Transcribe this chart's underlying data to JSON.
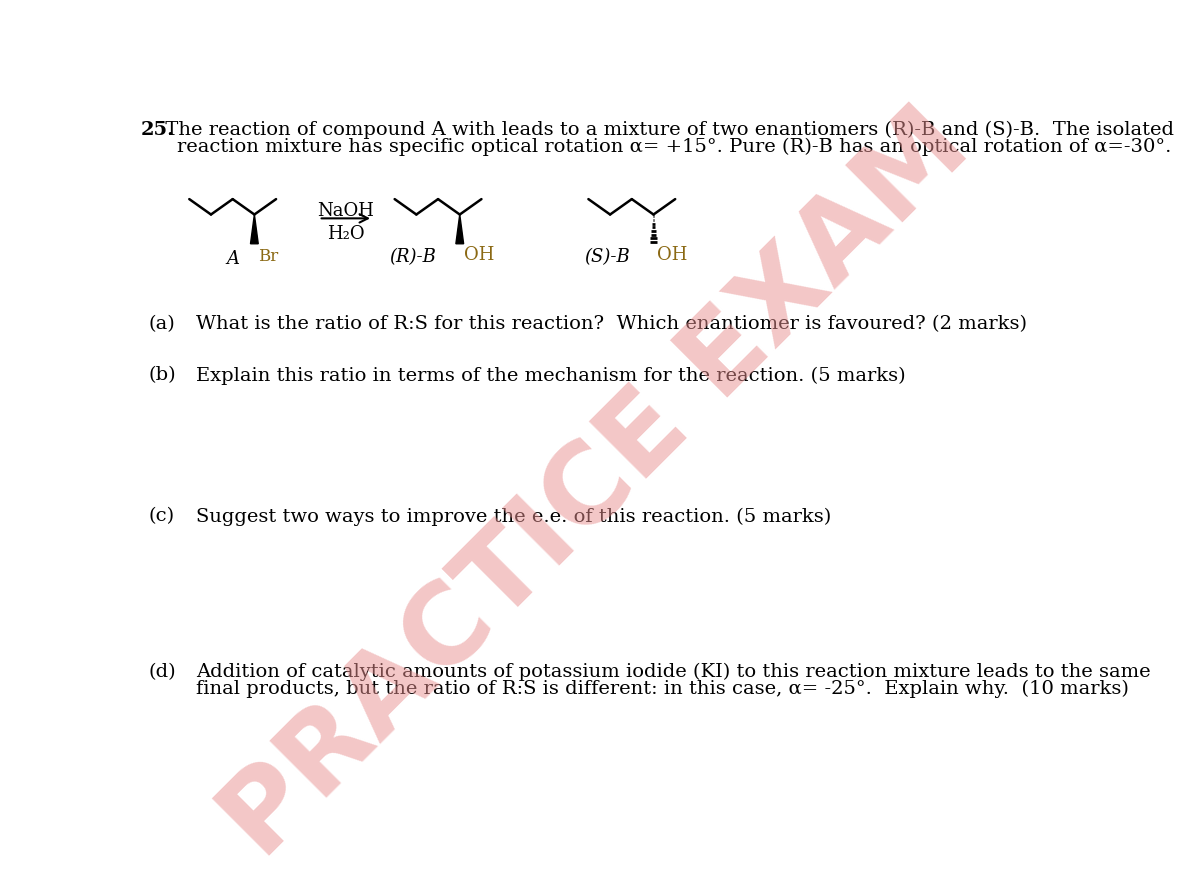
{
  "bg_color": "#ffffff",
  "text_color": "#000000",
  "br_color": "#8B6914",
  "oh_color": "#8B6914",
  "watermark_color": "#e89090",
  "title_bold": "25.",
  "title_line1": " The reaction of compound A with leads to a mixture of two enantiomers (R)-B and (S)-B.  The isolated",
  "title_line2": "reaction mixture has specific optical rotation α= +15°. Pure (R)-B has an optical rotation of α=-30°.",
  "reagent1": "NaOH",
  "reagent2": "H₂O",
  "label_A": "A",
  "label_Br": "Br",
  "label_RB": "(R)-B",
  "label_OH_R": "OH",
  "label_SB": "(S)-B",
  "label_OH_S": "OH",
  "qa_label": "(a)",
  "qa_text": "What is the ratio of R:S for this reaction?  Which enantiomer is favoured? (2 marks)",
  "qb_label": "(b)",
  "qb_text": "Explain this ratio in terms of the mechanism for the reaction. (5 marks)",
  "qc_label": "(c)",
  "qc_text": "Suggest two ways to improve the e.e. of this reaction. (5 marks)",
  "qd_label": "(d)",
  "qd_text1": "Addition of catalytic amounts of potassium iodide (KI) to this reaction mixture leads to the same",
  "qd_text2": "final products, but the ratio of R:S is different: in this case, α= -25°.  Explain why.  (10 marks)",
  "watermark_text": "PRACTICE EXAM",
  "fs_main": 14,
  "fs_chem": 13,
  "fs_label": 13
}
